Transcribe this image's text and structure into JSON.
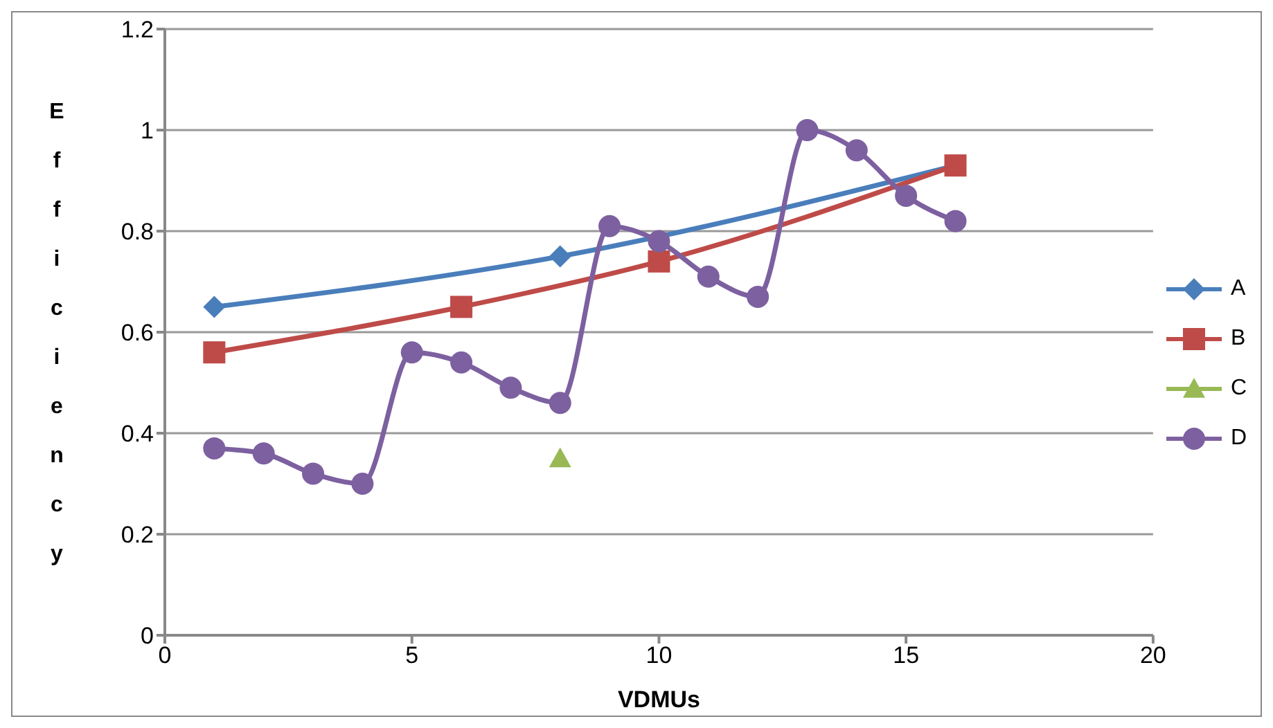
{
  "chart_data": {
    "type": "line",
    "xlabel": "VDMUs",
    "ylabel": "Efficiency",
    "xlim": [
      0,
      20
    ],
    "xticks": [
      0,
      5,
      10,
      15,
      20
    ],
    "ylim": [
      0,
      1.2
    ],
    "yticks": [
      0,
      0.2,
      0.4,
      0.6,
      0.8,
      1,
      1.2
    ],
    "grid": "y",
    "legend": "right",
    "line_style": "solid",
    "series": [
      {
        "name": "A",
        "color": "#4a7ebb",
        "marker": "diamond",
        "x": [
          1,
          8,
          16
        ],
        "values": [
          0.65,
          0.75,
          0.93
        ]
      },
      {
        "name": "B",
        "color": "#be4b48",
        "marker": "square",
        "x": [
          1,
          6,
          10,
          16
        ],
        "values": [
          0.56,
          0.65,
          0.74,
          0.93
        ]
      },
      {
        "name": "C",
        "color": "#98b954",
        "marker": "triangle",
        "x": [
          8
        ],
        "values": [
          0.35
        ]
      },
      {
        "name": "D",
        "color": "#7d60a0",
        "marker": "circle",
        "x": [
          1,
          2,
          3,
          4,
          5,
          6,
          7,
          8,
          9,
          10,
          11,
          12,
          13,
          14,
          15,
          16
        ],
        "values": [
          0.37,
          0.36,
          0.32,
          0.3,
          0.56,
          0.54,
          0.49,
          0.46,
          0.81,
          0.78,
          0.71,
          0.67,
          1,
          0.96,
          0.87,
          0.82
        ]
      }
    ]
  }
}
